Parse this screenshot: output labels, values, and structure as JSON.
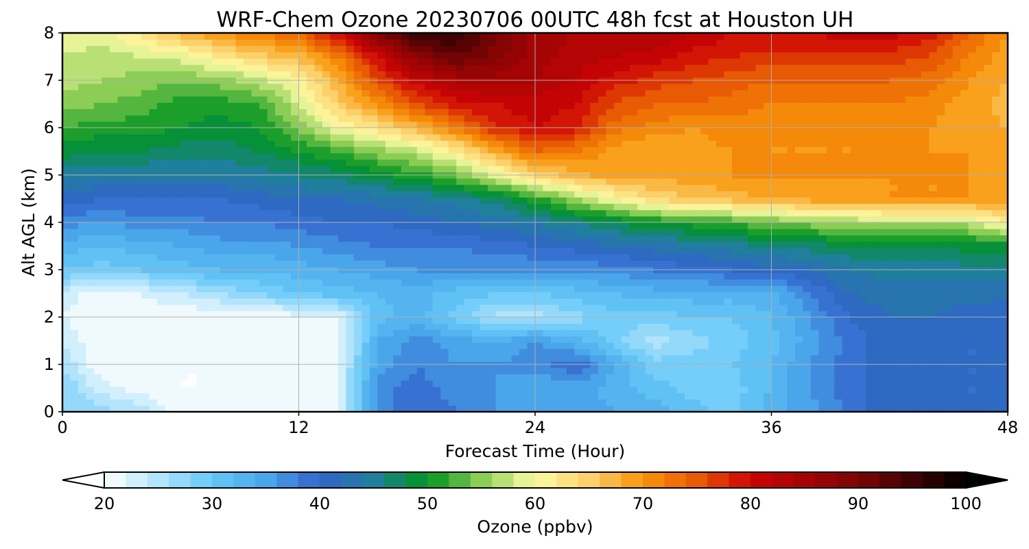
{
  "chart_data": {
    "type": "heatmap",
    "title": "WRF-Chem Ozone  20230706 00UTC 48h fcst at Houston UH",
    "xlabel": "Forecast Time (Hour)",
    "ylabel": "Alt AGL (km)",
    "xlim": [
      0,
      48
    ],
    "ylim": [
      0,
      8
    ],
    "x_ticks": [
      0,
      12,
      24,
      36,
      48
    ],
    "y_ticks": [
      0,
      1,
      2,
      3,
      4,
      5,
      6,
      7,
      8
    ],
    "grid": true,
    "colorbar": {
      "label": "Ozone  (ppbv)",
      "min": 20,
      "max": 100,
      "step": 2,
      "ticks": [
        20,
        30,
        40,
        50,
        60,
        70,
        80,
        90,
        100
      ],
      "extend": "both",
      "orientation": "horizontal",
      "color_stops": [
        {
          "v": 20,
          "c": "#ffffff"
        },
        {
          "v": 30,
          "c": "#66c8f8"
        },
        {
          "v": 35,
          "c": "#4aa6ea"
        },
        {
          "v": 40,
          "c": "#3264cc"
        },
        {
          "v": 45,
          "c": "#1f7f9c"
        },
        {
          "v": 50,
          "c": "#00941f"
        },
        {
          "v": 55,
          "c": "#8ccd55"
        },
        {
          "v": 60,
          "c": "#fcfca6"
        },
        {
          "v": 65,
          "c": "#fcd06a"
        },
        {
          "v": 70,
          "c": "#f8950a"
        },
        {
          "v": 75,
          "c": "#e85a04"
        },
        {
          "v": 80,
          "c": "#cc0404"
        },
        {
          "v": 90,
          "c": "#7d0404"
        },
        {
          "v": 100,
          "c": "#000000"
        }
      ]
    },
    "x": [
      0,
      2,
      4,
      6,
      8,
      10,
      12,
      14,
      16,
      18,
      20,
      22,
      24,
      26,
      28,
      30,
      32,
      34,
      36,
      38,
      40,
      42,
      44,
      46,
      48
    ],
    "y": [
      0,
      0.5,
      1,
      1.5,
      2,
      2.5,
      3,
      3.5,
      4,
      4.5,
      5,
      5.5,
      6,
      6.5,
      7,
      7.5,
      8
    ],
    "z": [
      [
        28,
        27,
        25,
        20,
        20,
        20,
        20,
        22,
        37,
        40,
        38,
        36,
        35,
        36,
        34,
        33,
        31,
        29,
        33,
        35,
        39,
        42,
        41,
        40,
        40
      ],
      [
        28,
        23,
        21,
        20,
        20,
        20,
        20,
        22,
        37,
        39,
        37,
        36,
        34,
        35,
        33,
        31,
        29,
        29,
        32,
        36,
        39,
        41,
        41,
        40,
        40
      ],
      [
        26,
        20,
        20,
        20,
        20,
        20,
        20,
        22,
        35,
        38,
        36,
        36,
        37,
        40,
        34,
        29,
        29,
        30,
        32,
        36,
        39,
        41,
        41,
        40,
        40
      ],
      [
        24,
        20,
        20,
        20,
        20,
        20,
        20,
        21,
        34,
        37,
        35,
        34,
        36,
        33,
        29,
        25,
        27,
        29,
        31,
        35,
        39,
        41,
        41,
        40,
        40
      ],
      [
        22,
        20,
        20,
        20,
        20,
        20,
        21,
        22,
        31,
        33,
        29,
        25,
        25,
        27,
        29,
        29,
        30,
        30,
        32,
        36,
        40,
        42,
        42,
        41,
        41
      ],
      [
        23,
        21,
        22,
        24,
        26,
        28,
        30,
        31,
        32,
        33,
        31,
        30,
        30,
        31,
        32,
        33,
        33,
        33,
        33,
        38,
        42,
        43,
        43,
        43,
        42
      ],
      [
        30,
        29,
        30,
        31,
        32,
        32,
        33,
        34,
        35,
        36,
        36,
        36,
        36,
        36,
        37,
        38,
        39,
        40,
        41,
        42,
        44,
        45,
        45,
        45,
        45
      ],
      [
        33,
        32,
        33,
        34,
        35,
        35,
        36,
        37,
        38,
        38,
        38,
        39,
        40,
        41,
        42,
        43,
        44,
        45,
        46,
        47,
        48,
        48,
        48,
        49,
        49
      ],
      [
        37,
        36,
        37,
        37,
        38,
        38,
        39,
        40,
        40,
        41,
        42,
        43,
        44,
        46,
        48,
        50,
        51,
        52,
        54,
        55,
        56,
        57,
        57,
        57,
        62
      ],
      [
        41,
        40,
        40,
        40,
        40,
        41,
        42,
        42,
        43,
        44,
        45,
        47,
        51,
        56,
        60,
        64,
        66,
        67,
        68,
        69,
        69,
        70,
        70,
        70,
        70
      ],
      [
        45,
        44,
        44,
        44,
        44,
        45,
        46,
        47,
        49,
        51,
        54,
        59,
        64,
        67,
        69,
        69,
        69,
        70,
        70,
        70,
        70,
        70,
        70,
        70,
        69
      ],
      [
        49,
        48,
        48,
        47,
        47,
        48,
        50,
        52,
        55,
        57,
        62,
        68,
        74,
        72,
        69,
        68,
        69,
        70,
        70,
        70,
        70,
        70,
        70,
        70,
        69
      ],
      [
        52,
        51,
        51,
        50,
        49,
        50,
        54,
        60,
        63,
        67,
        72,
        78,
        80,
        79,
        73,
        71,
        70,
        71,
        70,
        70,
        70,
        71,
        70,
        69,
        68
      ],
      [
        55,
        54,
        53,
        51,
        51,
        52,
        58,
        65,
        70,
        76,
        79,
        80,
        81,
        80,
        76,
        74,
        74,
        73,
        72,
        72,
        72,
        72,
        71,
        69,
        67
      ],
      [
        57,
        56,
        55,
        54,
        55,
        57,
        61,
        68,
        76,
        81,
        84,
        85,
        84,
        82,
        79,
        77,
        76,
        75,
        74,
        74,
        74,
        74,
        73,
        70,
        68
      ],
      [
        58,
        57,
        58,
        59,
        62,
        65,
        67,
        72,
        80,
        88,
        92,
        89,
        85,
        83,
        82,
        81,
        79,
        78,
        77,
        77,
        77,
        77,
        76,
        72,
        69
      ],
      [
        59,
        59,
        63,
        67,
        70,
        72,
        74,
        80,
        89,
        97,
        96,
        90,
        85,
        84,
        84,
        84,
        82,
        80,
        80,
        80,
        81,
        81,
        79,
        74,
        70
      ]
    ]
  }
}
